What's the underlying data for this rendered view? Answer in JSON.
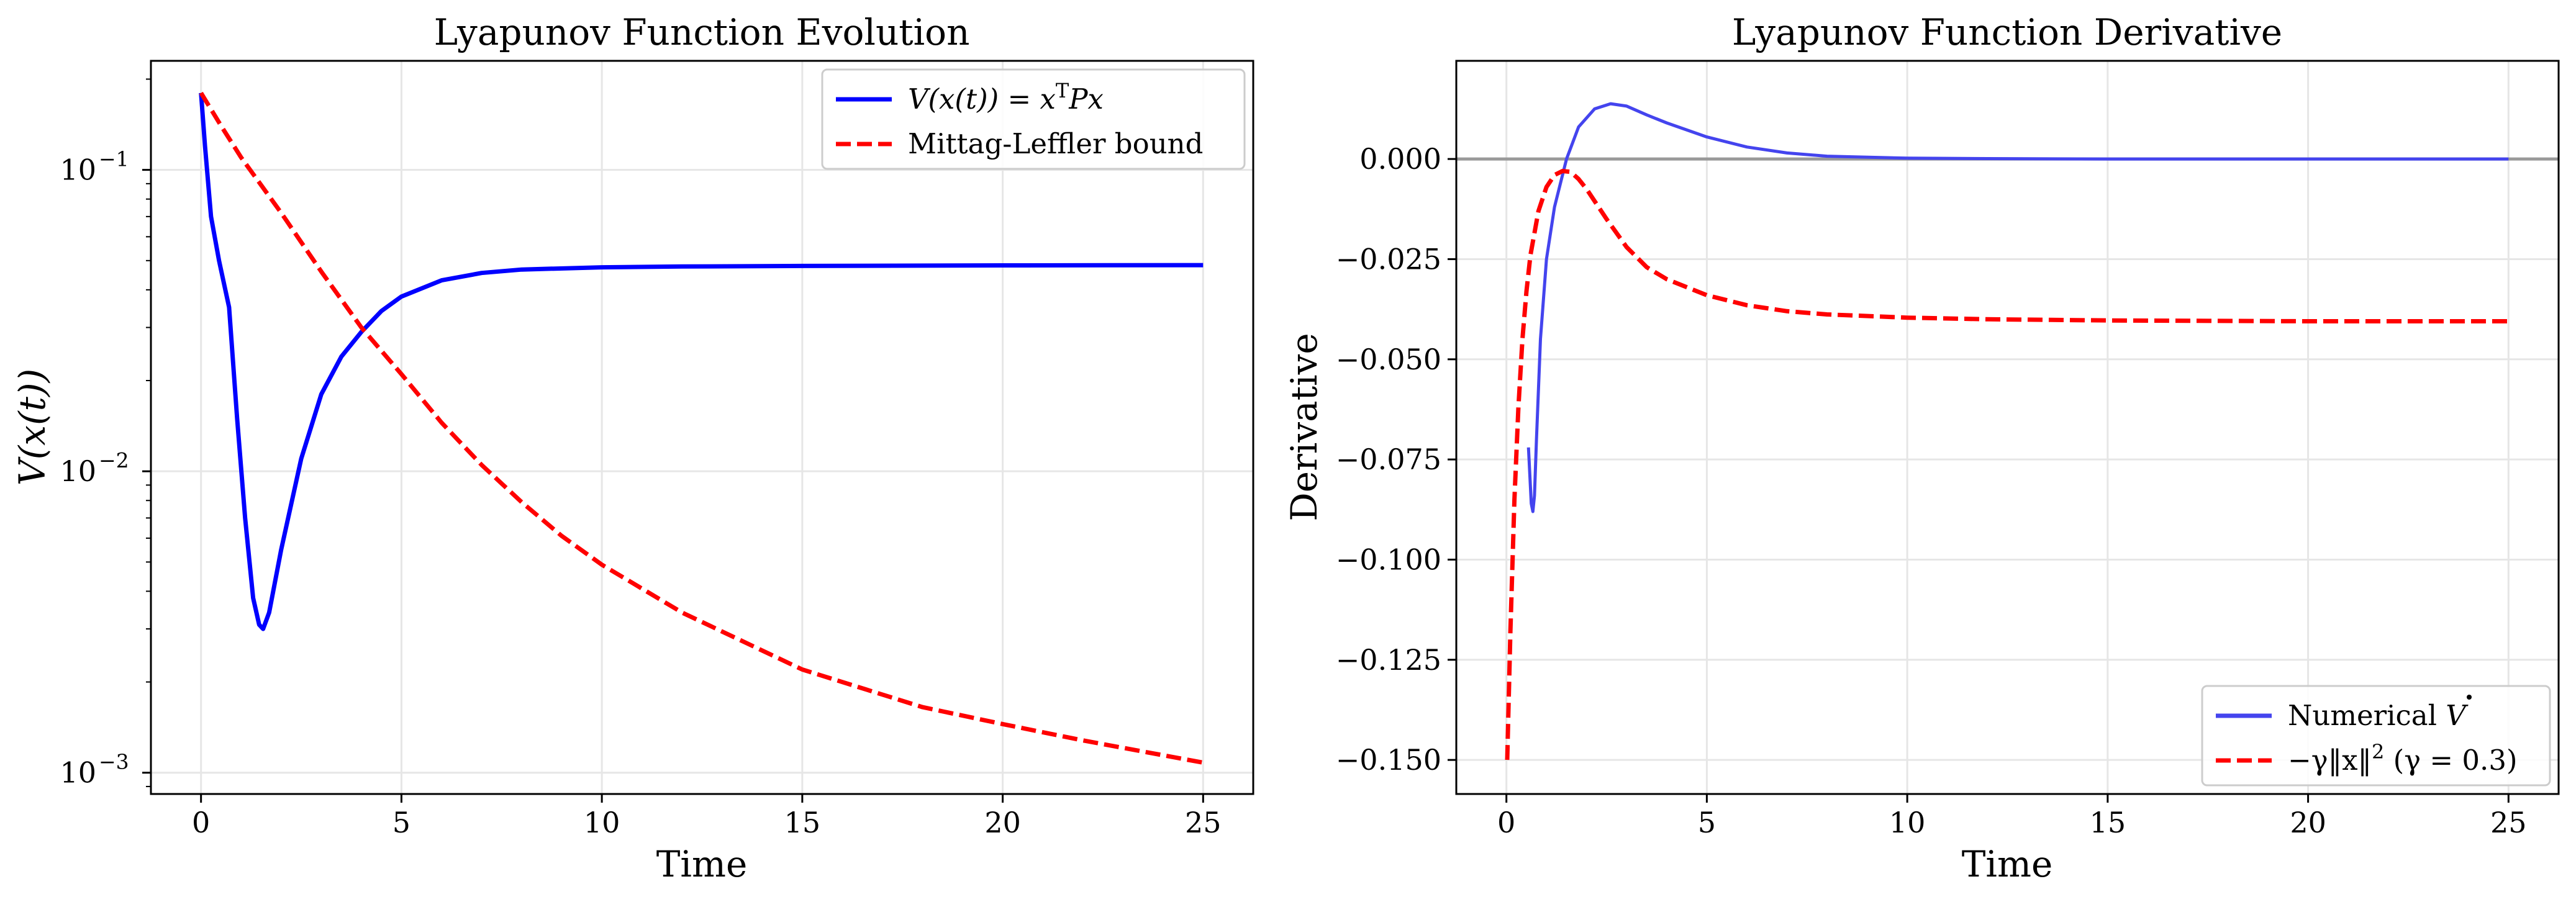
{
  "figure": {
    "colors": {
      "blue": "#0000ff",
      "red": "#ff0000",
      "faded_blue": "#4444ee",
      "zero_line": "#999999"
    }
  },
  "chart_data": [
    {
      "type": "line",
      "title": "Lyapunov Function Evolution",
      "xlabel": "Time",
      "ylabel": "V(x(t))",
      "yscale": "log",
      "xlim": [
        -1.25,
        26.25
      ],
      "ylim": [
        0.00085,
        0.23
      ],
      "xticks": [
        0,
        5,
        10,
        15,
        20,
        25
      ],
      "xtick_labels": [
        "0",
        "5",
        "10",
        "15",
        "20",
        "25"
      ],
      "yticks": [
        0.001,
        0.01,
        0.1
      ],
      "ytick_labels": [
        "10",
        "10",
        "10"
      ],
      "ytick_exponents": [
        "−3",
        "−2",
        "−1"
      ],
      "grid": true,
      "legend_position": "top-right",
      "series": [
        {
          "name": "V(x(t)) = x^T P x",
          "legend_label": {
            "pre": "V(x(t)) = x",
            "sup": "T",
            "post": "Px"
          },
          "color": "#0000ff",
          "style": "solid",
          "x": [
            0,
            0.1,
            0.25,
            0.45,
            0.7,
            0.9,
            1.1,
            1.3,
            1.45,
            1.55,
            1.7,
            2.0,
            2.5,
            3.0,
            3.5,
            4.0,
            4.5,
            5.0,
            6.0,
            7.0,
            8.0,
            10.0,
            12.0,
            15.0,
            20.0,
            25.0
          ],
          "y": [
            0.18,
            0.12,
            0.07,
            0.05,
            0.035,
            0.015,
            0.007,
            0.0038,
            0.0031,
            0.003,
            0.0034,
            0.0055,
            0.011,
            0.018,
            0.024,
            0.029,
            0.034,
            0.038,
            0.043,
            0.0455,
            0.0467,
            0.0475,
            0.0478,
            0.048,
            0.0482,
            0.0483
          ]
        },
        {
          "name": "Mittag-Leffler bound",
          "legend_label": {
            "pre": "Mittag-Leffler bound",
            "sup": "",
            "post": ""
          },
          "color": "#ff0000",
          "style": "dashed",
          "x": [
            0,
            0.5,
            1,
            2,
            3,
            4,
            5,
            6,
            7,
            8,
            9,
            10,
            12,
            15,
            18,
            20,
            22,
            25
          ],
          "y": [
            0.18,
            0.14,
            0.11,
            0.072,
            0.046,
            0.03,
            0.021,
            0.0145,
            0.0105,
            0.0079,
            0.0061,
            0.0049,
            0.0034,
            0.0022,
            0.00165,
            0.00145,
            0.00128,
            0.00108
          ]
        }
      ]
    },
    {
      "type": "line",
      "title": "Lyapunov Function Derivative",
      "xlabel": "Time",
      "ylabel": "Derivative",
      "xlim": [
        -1.25,
        26.25
      ],
      "ylim": [
        -0.1585,
        0.0245
      ],
      "xticks": [
        0,
        5,
        10,
        15,
        20,
        25
      ],
      "xtick_labels": [
        "0",
        "5",
        "10",
        "15",
        "20",
        "25"
      ],
      "yticks": [
        0.0,
        -0.025,
        -0.05,
        -0.075,
        -0.1,
        -0.125,
        -0.15
      ],
      "ytick_labels": [
        "0.000",
        "−0.025",
        "−0.050",
        "−0.075",
        "−0.100",
        "−0.125",
        "−0.150"
      ],
      "grid": true,
      "hline": 0,
      "legend_position": "bottom-right",
      "series": [
        {
          "name": "Numerical V̇",
          "legend_label": {
            "pre": "Numerical ",
            "sup": "",
            "post": "",
            "dot": "V"
          },
          "color": "#4444ee",
          "style": "solid",
          "x": [
            0.55,
            0.62,
            0.66,
            0.7,
            0.75,
            0.85,
            1.0,
            1.2,
            1.5,
            1.8,
            2.2,
            2.6,
            3.0,
            3.5,
            4.0,
            5.0,
            6.0,
            7.0,
            8.0,
            10.0,
            12.0,
            15.0,
            20.0,
            25.0
          ],
          "y": [
            -0.072,
            -0.086,
            -0.088,
            -0.084,
            -0.07,
            -0.045,
            -0.025,
            -0.012,
            0.0,
            0.008,
            0.0125,
            0.0138,
            0.0132,
            0.011,
            0.009,
            0.0055,
            0.003,
            0.0015,
            0.0007,
            0.0002,
            0.0001,
            0.0,
            0.0,
            0.0
          ]
        },
        {
          "name": "−γ‖x‖² (γ = 0.3)",
          "legend_label": {
            "pre": "−γ‖x‖",
            "sup": "2",
            "post": " (γ = 0.3)"
          },
          "color": "#ff0000",
          "style": "dashed",
          "x": [
            0.02,
            0.1,
            0.2,
            0.3,
            0.4,
            0.5,
            0.6,
            0.8,
            1.0,
            1.2,
            1.4,
            1.6,
            1.8,
            2.0,
            2.5,
            3.0,
            3.5,
            4.0,
            5.0,
            6.0,
            7.0,
            8.0,
            10.0,
            12.0,
            15.0,
            20.0,
            25.0
          ],
          "y": [
            -0.15,
            -0.118,
            -0.085,
            -0.062,
            -0.045,
            -0.033,
            -0.024,
            -0.013,
            -0.007,
            -0.004,
            -0.003,
            -0.0032,
            -0.005,
            -0.0075,
            -0.015,
            -0.022,
            -0.027,
            -0.03,
            -0.034,
            -0.0365,
            -0.038,
            -0.0388,
            -0.0396,
            -0.04,
            -0.0403,
            -0.0405,
            -0.0405
          ]
        }
      ]
    }
  ]
}
